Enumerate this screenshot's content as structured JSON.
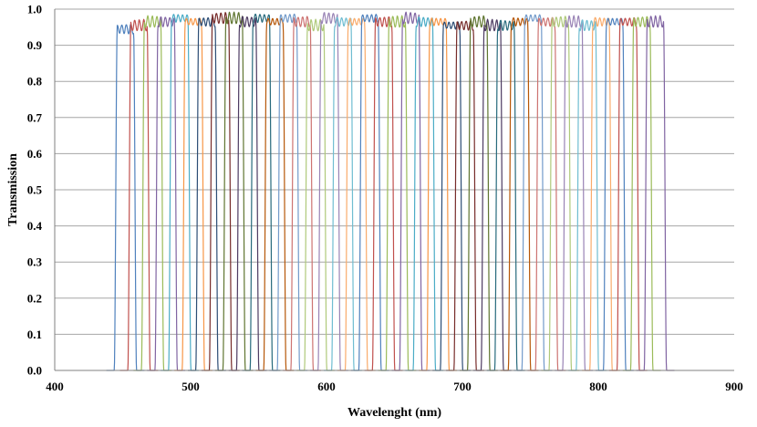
{
  "chart_data": {
    "type": "line",
    "title": "",
    "xlabel": "Wavelenght (nm)",
    "ylabel": "Transmission",
    "xlim": [
      400,
      900
    ],
    "ylim": [
      0.0,
      1.0
    ],
    "x_ticks": [
      "400",
      "500",
      "600",
      "700",
      "800",
      "900"
    ],
    "y_ticks": [
      "0.0",
      "0.1",
      "0.2",
      "0.3",
      "0.4",
      "0.5",
      "0.6",
      "0.7",
      "0.8",
      "0.9",
      "1.0"
    ],
    "grid": "horizontal",
    "legend": "none",
    "filter_bandwidth_nm": 12,
    "filters_center_nm": [
      452,
      462,
      472,
      482,
      492,
      502,
      512,
      522,
      532,
      542,
      552,
      562,
      572,
      582,
      592,
      602,
      612,
      622,
      632,
      642,
      652,
      662,
      672,
      682,
      692,
      702,
      712,
      722,
      732,
      742,
      752,
      762,
      772,
      782,
      792,
      802,
      812,
      822,
      832,
      842
    ],
    "filters_peak": [
      0.95,
      0.96,
      0.97,
      0.97,
      0.98,
      0.97,
      0.97,
      0.98,
      0.98,
      0.97,
      0.98,
      0.97,
      0.98,
      0.97,
      0.96,
      0.98,
      0.97,
      0.97,
      0.98,
      0.97,
      0.97,
      0.98,
      0.97,
      0.97,
      0.96,
      0.96,
      0.97,
      0.96,
      0.96,
      0.97,
      0.98,
      0.97,
      0.97,
      0.97,
      0.96,
      0.97,
      0.97,
      0.97,
      0.97,
      0.97
    ],
    "colors": [
      "#4f81bd",
      "#c0504d",
      "#9bbb59",
      "#8064a2",
      "#4bacc6",
      "#f79646",
      "#2c4d75",
      "#772c2a",
      "#5f7530",
      "#4d3b62",
      "#276a7c",
      "#b65708",
      "#729aca",
      "#cd7371",
      "#afc97a",
      "#9983b5",
      "#6fbdd1",
      "#f9ab6b"
    ]
  }
}
